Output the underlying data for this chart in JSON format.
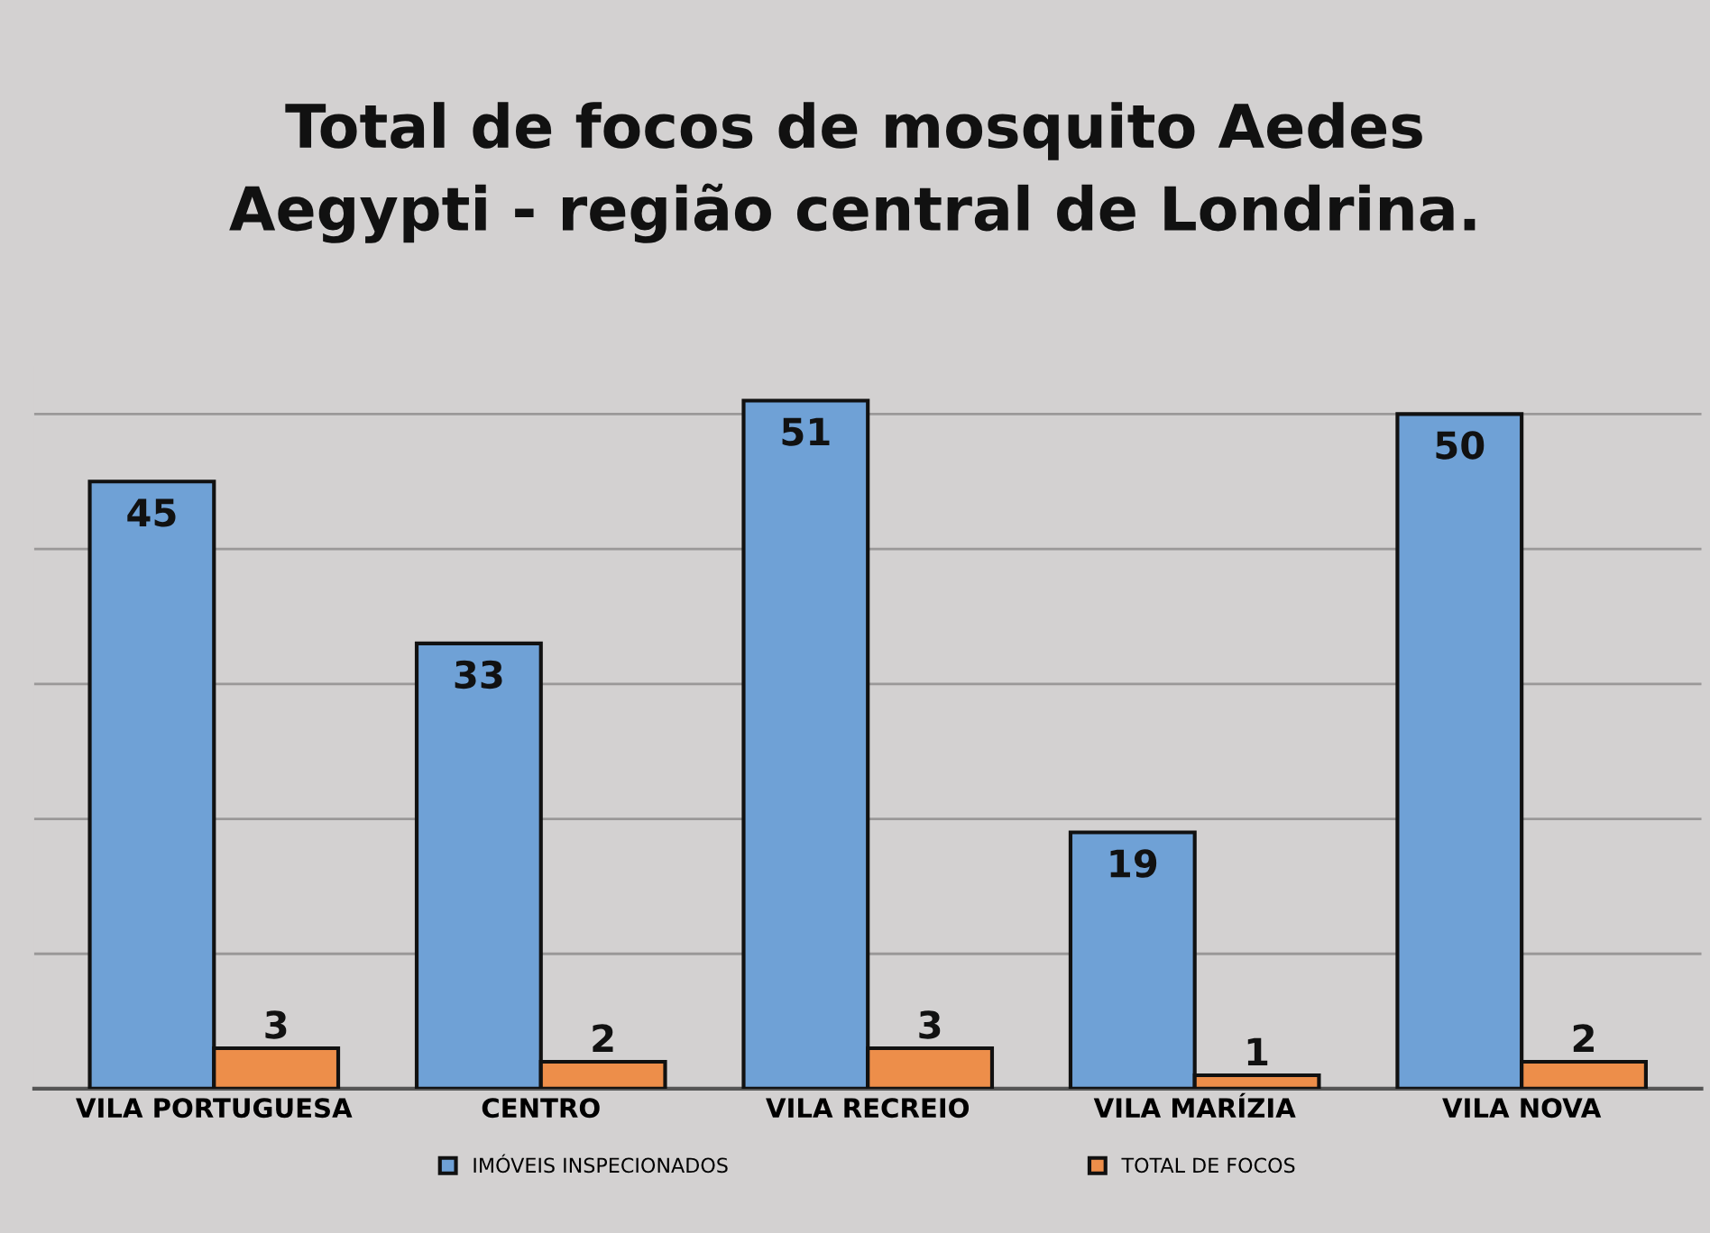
{
  "chart_data": {
    "type": "bar",
    "title": "Total de focos de mosquito Aedes\nAegypti - região central de Londrina.",
    "categories": [
      "VILA PORTUGUESA",
      "CENTRO",
      "VILA RECREIO",
      "VILA MARÍZIA",
      "VILA NOVA"
    ],
    "series": [
      {
        "name": "IMÓVEIS INSPECIONADOS",
        "color": "#6fa1d6",
        "values": [
          45,
          33,
          51,
          19,
          50
        ]
      },
      {
        "name": "TOTAL DE FOCOS",
        "color": "#ed8e4a",
        "values": [
          3,
          2,
          3,
          1,
          2
        ]
      }
    ],
    "yticks": [
      {
        "value": 0,
        "label": null
      },
      {
        "value": 10,
        "label": null
      },
      {
        "value": 20,
        "label": null
      },
      {
        "value": 30,
        "label": null
      },
      {
        "value": 40,
        "label": null
      },
      {
        "value": 50,
        "label": null
      }
    ],
    "tick_labels": "x",
    "grid": "y",
    "legend": "bottom",
    "data_labels": true
  }
}
